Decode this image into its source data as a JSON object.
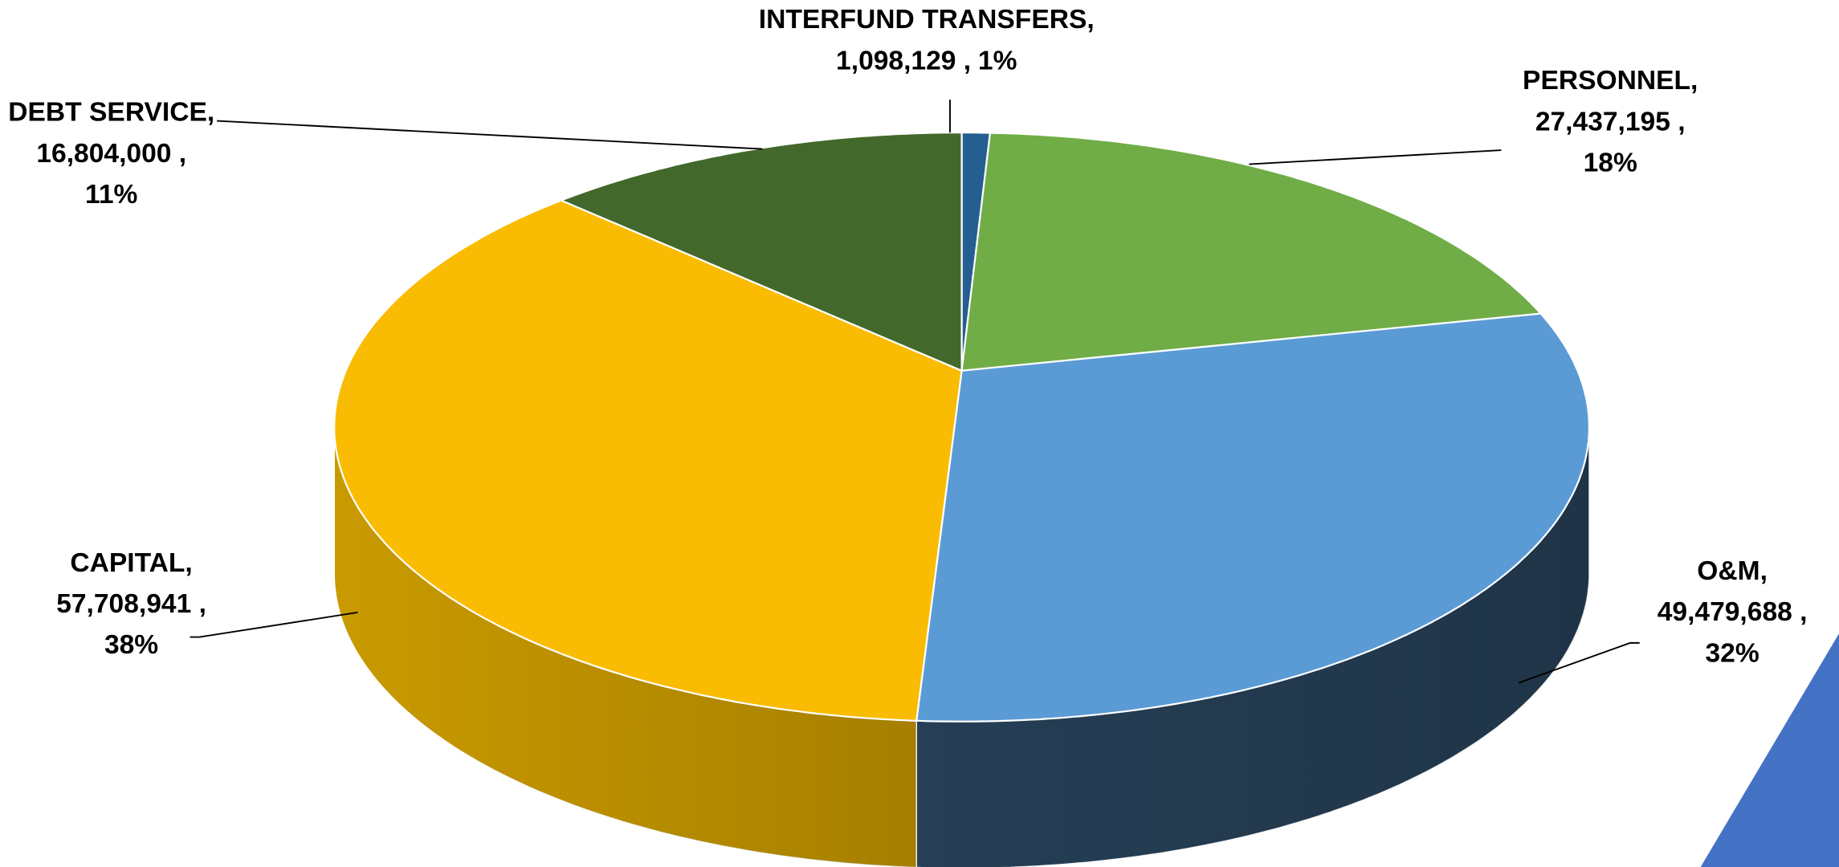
{
  "chart_data": {
    "type": "pie3d",
    "categories": [
      "INTERFUND TRANSFERS,",
      "PERSONNEL,",
      "O&M,",
      "CAPITAL,",
      "DEBT SERVICE,"
    ],
    "values": [
      1098129,
      27437195,
      49479688,
      57708941,
      16804000
    ],
    "value_labels": [
      "1,098,129 ,",
      "27,437,195 ,",
      "49,479,688 ,",
      "57,708,941 ,",
      "16,804,000 ,"
    ],
    "percent_labels": [
      "1%",
      "18%",
      "32%",
      "38%",
      "11%"
    ],
    "colors": [
      "#255e91",
      "#70ad47",
      "#5b9bd5",
      "#f9bc02",
      "#43682b"
    ],
    "side_colors": [
      "#1b4468",
      "#4f7a32",
      "#263f56",
      "#c99a00",
      "#2f4a1e"
    ]
  }
}
